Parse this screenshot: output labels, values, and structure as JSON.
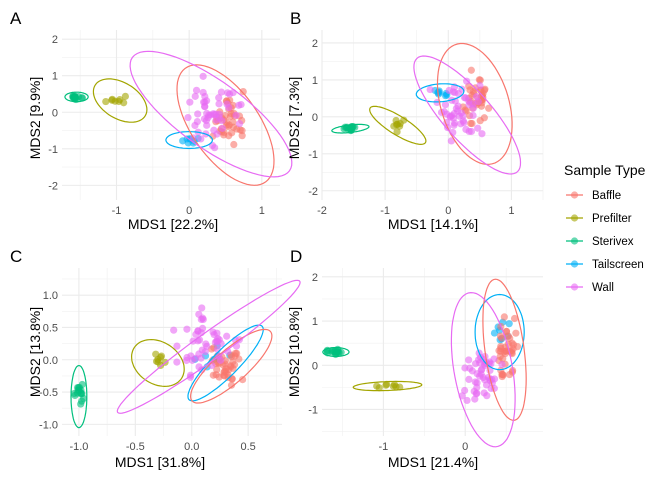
{
  "legend": {
    "title": "Sample Type",
    "entries": [
      {
        "label": "Baffle",
        "color": "#F8766D"
      },
      {
        "label": "Prefilter",
        "color": "#A3A500"
      },
      {
        "label": "Sterivex",
        "color": "#00BF7D"
      },
      {
        "label": "Tailscreen",
        "color": "#00B0F6"
      },
      {
        "label": "Wall",
        "color": "#E76BF3"
      }
    ]
  },
  "chart_data": [
    {
      "panel": "A",
      "type": "scatter",
      "xlabel": "MDS1 [22.2%]",
      "ylabel": "MDS2 [9.9%]",
      "xlim": [
        -1.75,
        1.25
      ],
      "ylim": [
        -2.4,
        2.25
      ],
      "xticks": [
        -1,
        0,
        1
      ],
      "yticks": [
        -2,
        -1,
        0,
        1,
        2
      ],
      "groups": [
        {
          "name": "Sterivex",
          "center": [
            -1.55,
            0.42
          ],
          "spread": [
            0.07,
            0.08
          ],
          "n": 16,
          "seed": 11,
          "ellipse": {
            "cx": -1.55,
            "cy": 0.42,
            "rx": 0.16,
            "ry": 0.13,
            "angle": 0
          }
        },
        {
          "name": "Prefilter",
          "center": [
            -1.0,
            0.35
          ],
          "spread": [
            0.15,
            0.12
          ],
          "n": 8,
          "seed": 12,
          "ellipse": {
            "cx": -0.95,
            "cy": 0.32,
            "rx": 0.32,
            "ry": 0.62,
            "angle": 20
          }
        },
        {
          "name": "Tailscreen",
          "center": [
            0.0,
            -0.75
          ],
          "spread": [
            0.14,
            0.08
          ],
          "n": 8,
          "seed": 13,
          "ellipse": {
            "cx": 0.0,
            "cy": -0.76,
            "rx": 0.32,
            "ry": 0.23,
            "angle": 0
          }
        },
        {
          "name": "Baffle",
          "center": [
            0.55,
            -0.2
          ],
          "spread": [
            0.2,
            0.6
          ],
          "n": 40,
          "seed": 14,
          "ellipse": {
            "cx": 0.5,
            "cy": -0.35,
            "rx": 0.52,
            "ry": 1.7,
            "angle": 15
          }
        },
        {
          "name": "Wall",
          "center": [
            0.3,
            0.0
          ],
          "spread": [
            0.3,
            0.7
          ],
          "n": 50,
          "seed": 15,
          "ellipse": {
            "cx": 0.3,
            "cy": -0.05,
            "rx": 0.62,
            "ry": 1.95,
            "angle": 30
          }
        }
      ]
    },
    {
      "panel": "B",
      "type": "scatter",
      "xlabel": "MDS1 [14.1%]",
      "ylabel": "MDS2 [7.3%]",
      "xlim": [
        -2.0,
        1.5
      ],
      "ylim": [
        -2.25,
        2.35
      ],
      "xticks": [
        -2,
        -1,
        0,
        1
      ],
      "yticks": [
        -2,
        -1,
        0,
        1,
        2
      ],
      "groups": [
        {
          "name": "Sterivex",
          "center": [
            -1.55,
            -0.3
          ],
          "spread": [
            0.1,
            0.06
          ],
          "n": 16,
          "seed": 21,
          "ellipse": {
            "cx": -1.55,
            "cy": -0.32,
            "rx": 0.3,
            "ry": 0.1,
            "angle": 12
          }
        },
        {
          "name": "Prefilter",
          "center": [
            -0.8,
            -0.25
          ],
          "spread": [
            0.1,
            0.15
          ],
          "n": 8,
          "seed": 22,
          "ellipse": {
            "cx": -0.8,
            "cy": -0.23,
            "rx": 0.2,
            "ry": 0.65,
            "angle": 40
          }
        },
        {
          "name": "Tailscreen",
          "center": [
            -0.1,
            0.65
          ],
          "spread": [
            0.12,
            0.08
          ],
          "n": 8,
          "seed": 23,
          "ellipse": {
            "cx": -0.13,
            "cy": 0.65,
            "rx": 0.38,
            "ry": 0.24,
            "angle": 10
          }
        },
        {
          "name": "Baffle",
          "center": [
            0.45,
            0.5
          ],
          "spread": [
            0.2,
            0.6
          ],
          "n": 40,
          "seed": 24,
          "ellipse": {
            "cx": 0.42,
            "cy": 0.35,
            "rx": 0.55,
            "ry": 1.65,
            "angle": 8
          }
        },
        {
          "name": "Wall",
          "center": [
            0.2,
            0.1
          ],
          "spread": [
            0.3,
            0.7
          ],
          "n": 50,
          "seed": 25,
          "ellipse": {
            "cx": 0.3,
            "cy": 0.05,
            "rx": 0.45,
            "ry": 1.75,
            "angle": 25
          }
        }
      ]
    },
    {
      "panel": "C",
      "type": "scatter",
      "xlabel": "MDS1 [31.8%]",
      "ylabel": "MDS2 [13.8%]",
      "xlim": [
        -1.15,
        0.8
      ],
      "ylim": [
        -1.18,
        1.42
      ],
      "xticks": [
        -1.0,
        -0.5,
        0.0,
        0.5
      ],
      "yticks": [
        -1.0,
        -0.5,
        0.0,
        0.5,
        1.0
      ],
      "groups": [
        {
          "name": "Sterivex",
          "center": [
            -0.99,
            -0.55
          ],
          "spread": [
            0.04,
            0.15
          ],
          "n": 16,
          "seed": 31,
          "ellipse": {
            "cx": -1.0,
            "cy": -0.57,
            "rx": 0.07,
            "ry": 0.48,
            "angle": 0
          }
        },
        {
          "name": "Prefilter",
          "center": [
            -0.28,
            -0.02
          ],
          "spread": [
            0.1,
            0.15
          ],
          "n": 8,
          "seed": 32,
          "ellipse": {
            "cx": -0.3,
            "cy": -0.05,
            "rx": 0.22,
            "ry": 0.37,
            "angle": 15
          }
        },
        {
          "name": "Tailscreen",
          "center": [
            0.2,
            0.05
          ],
          "spread": [
            0.12,
            0.15
          ],
          "n": 8,
          "seed": 33,
          "ellipse": {
            "cx": 0.3,
            "cy": -0.05,
            "rx": 0.14,
            "ry": 0.66,
            "angle": -28
          }
        },
        {
          "name": "Baffle",
          "center": [
            0.3,
            -0.1
          ],
          "spread": [
            0.12,
            0.25
          ],
          "n": 40,
          "seed": 34,
          "ellipse": {
            "cx": 0.35,
            "cy": -0.1,
            "rx": 0.18,
            "ry": 0.65,
            "angle": -30
          }
        },
        {
          "name": "Wall",
          "center": [
            0.1,
            0.2
          ],
          "spread": [
            0.25,
            0.4
          ],
          "n": 50,
          "seed": 35,
          "ellipse": {
            "cx": 0.15,
            "cy": 0.2,
            "rx": 0.16,
            "ry": 1.3,
            "angle": -38
          }
        }
      ]
    },
    {
      "panel": "D",
      "type": "scatter",
      "xlabel": "MDS1 [21.4%]",
      "ylabel": "MDS2 [10.8%]",
      "xlim": [
        -1.75,
        0.95
      ],
      "ylim": [
        -1.6,
        2.2
      ],
      "xticks": [
        -1,
        0
      ],
      "yticks": [
        -1,
        0,
        1,
        2
      ],
      "groups": [
        {
          "name": "Sterivex",
          "center": [
            -1.6,
            0.3
          ],
          "spread": [
            0.08,
            0.05
          ],
          "n": 16,
          "seed": 41,
          "ellipse": {
            "cx": -1.58,
            "cy": 0.3,
            "rx": 0.16,
            "ry": 0.1,
            "angle": 0
          }
        },
        {
          "name": "Prefilter",
          "center": [
            -0.95,
            -0.47
          ],
          "spread": [
            0.15,
            0.04
          ],
          "n": 8,
          "seed": 42,
          "ellipse": {
            "cx": -0.95,
            "cy": -0.47,
            "rx": 0.42,
            "ry": 0.1,
            "angle": 4
          }
        },
        {
          "name": "Tailscreen",
          "center": [
            0.45,
            0.85
          ],
          "spread": [
            0.1,
            0.25
          ],
          "n": 8,
          "seed": 43,
          "ellipse": {
            "cx": 0.42,
            "cy": 0.75,
            "rx": 0.3,
            "ry": 0.85,
            "angle": 0
          }
        },
        {
          "name": "Baffle",
          "center": [
            0.5,
            0.3
          ],
          "spread": [
            0.12,
            0.6
          ],
          "n": 40,
          "seed": 44,
          "ellipse": {
            "cx": 0.48,
            "cy": 0.35,
            "rx": 0.24,
            "ry": 1.6,
            "angle": 4
          }
        },
        {
          "name": "Wall",
          "center": [
            0.2,
            -0.2
          ],
          "spread": [
            0.2,
            0.5
          ],
          "n": 50,
          "seed": 45,
          "ellipse": {
            "cx": 0.22,
            "cy": -0.1,
            "rx": 0.36,
            "ry": 1.75,
            "angle": 5
          }
        }
      ]
    }
  ]
}
